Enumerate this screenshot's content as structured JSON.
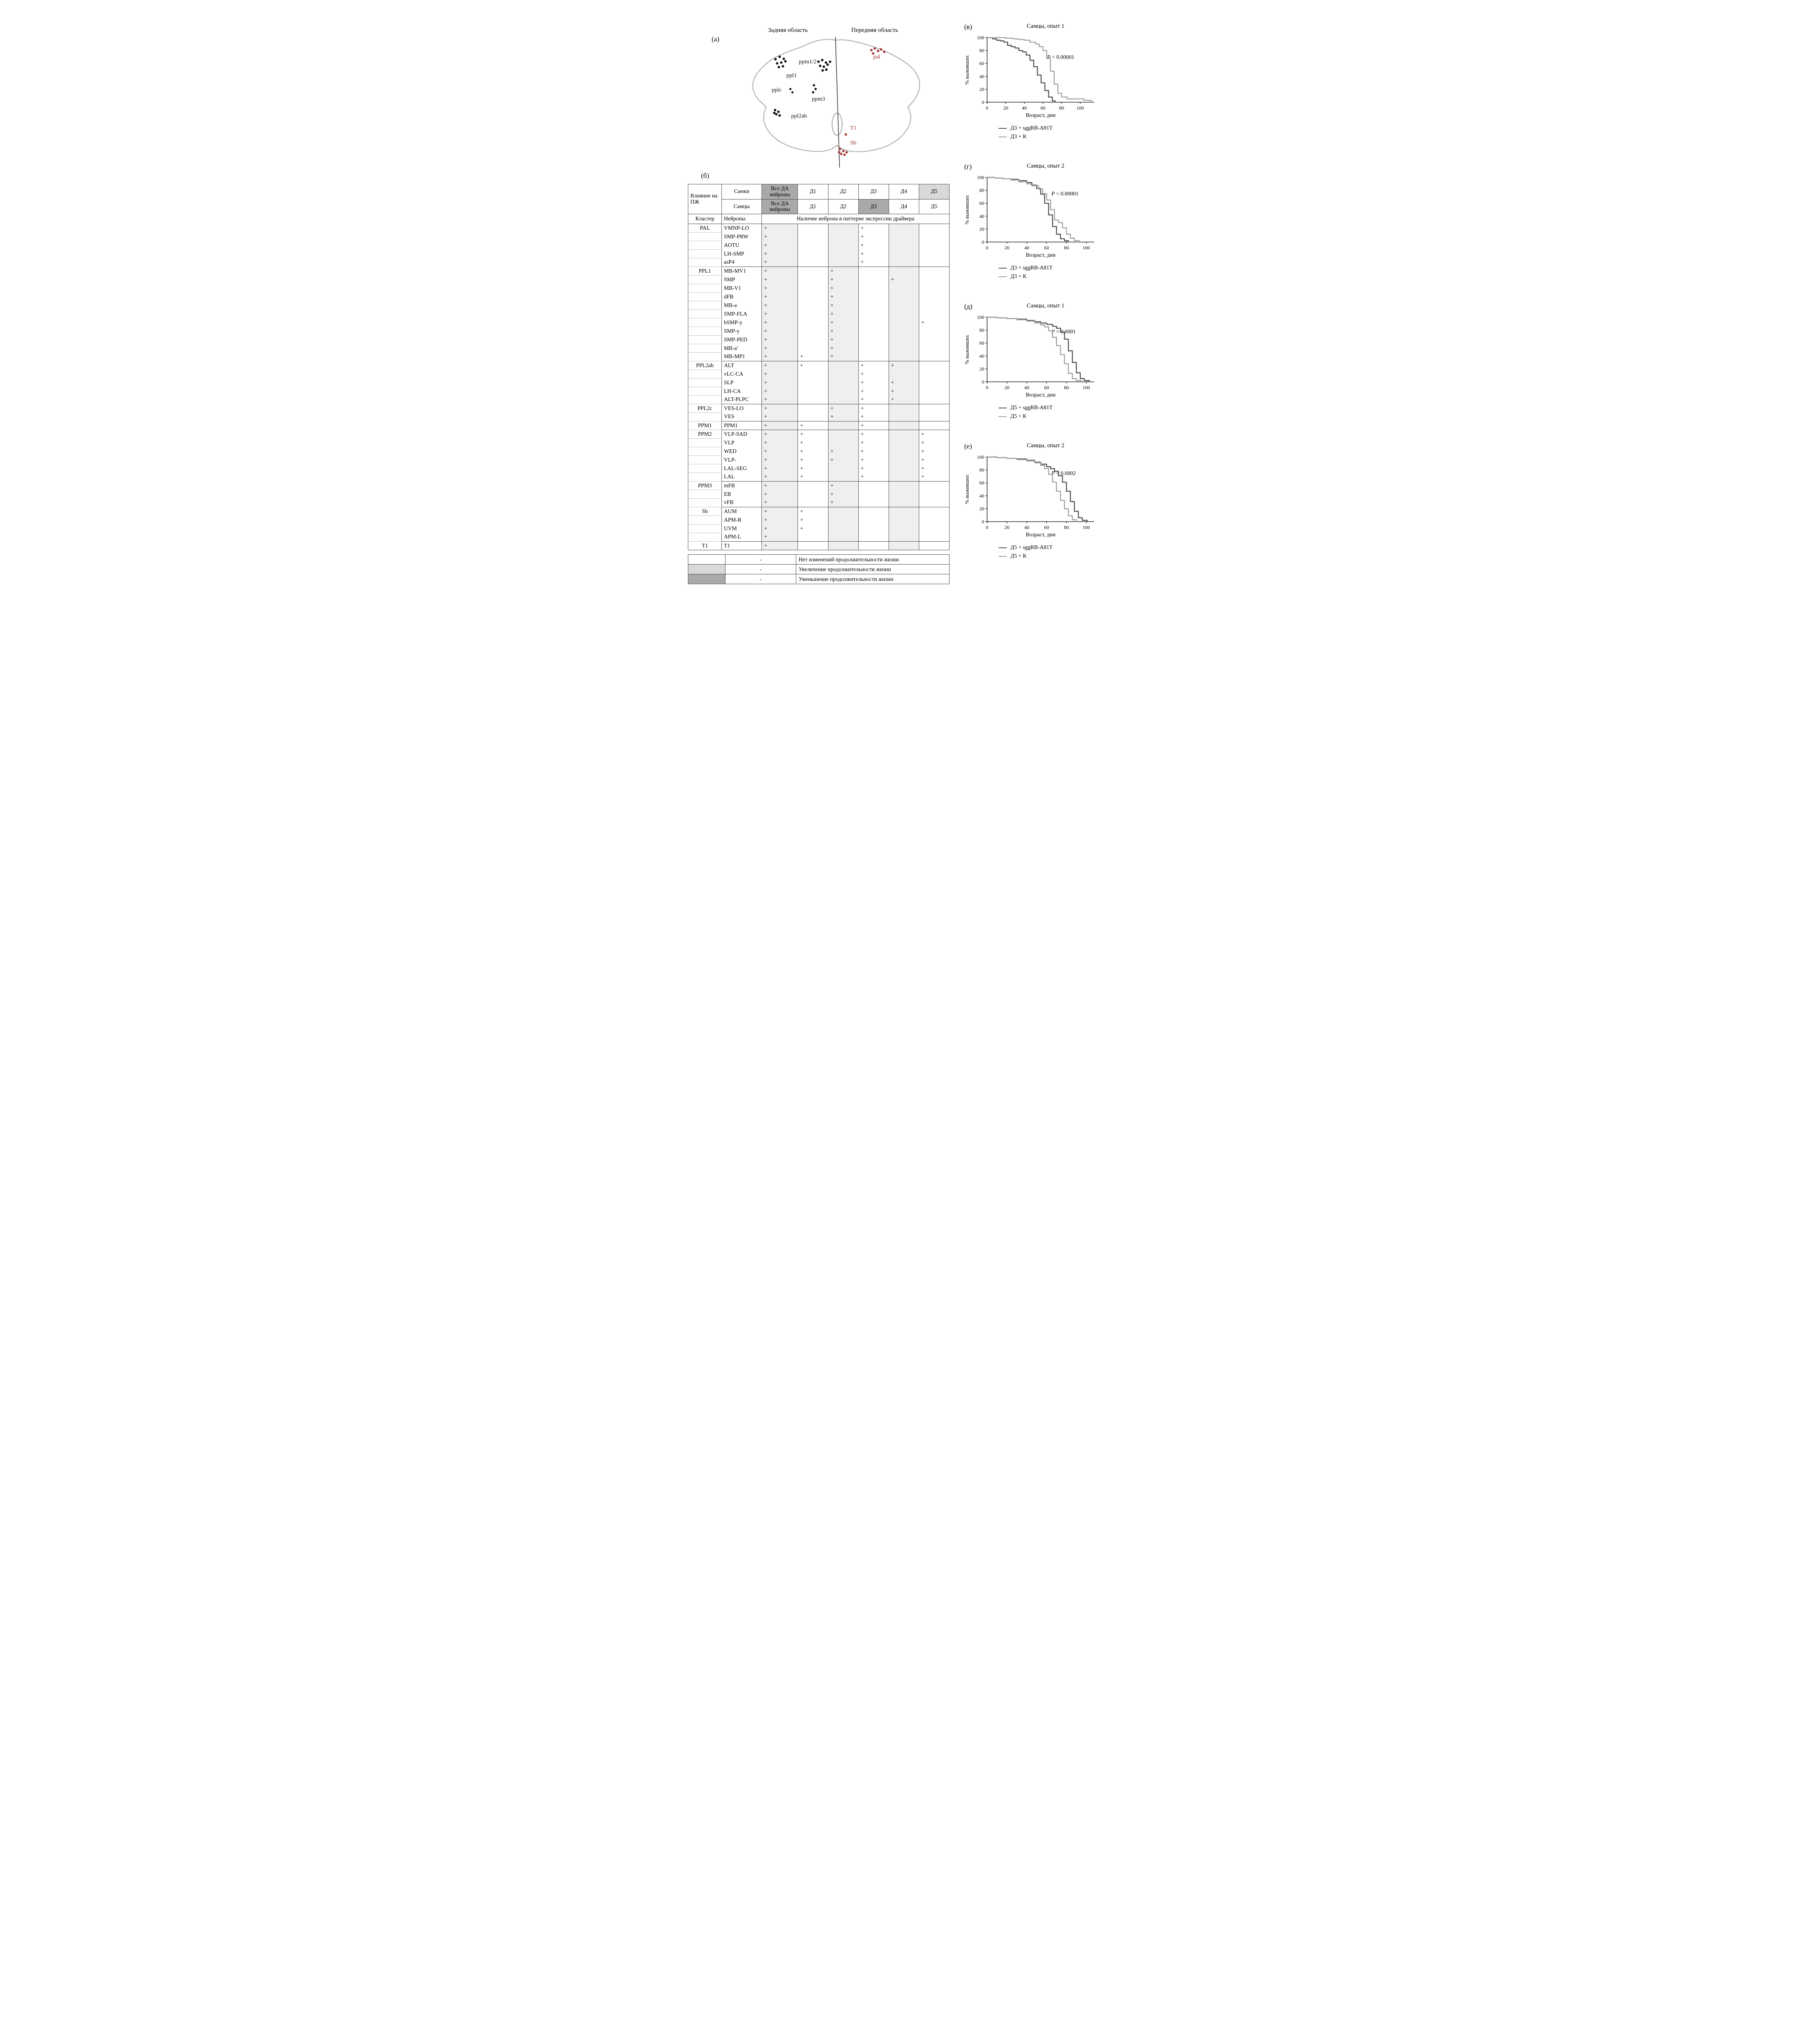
{
  "figure": {
    "panel_a": {
      "label": "(а)",
      "region_left": "Задняя область",
      "region_right": "Передняя область",
      "black_labels": [
        "ppm1/2",
        "ppl1",
        "pplc",
        "ppm3",
        "ppl2ab"
      ],
      "red_labels": [
        "pal",
        "T1",
        "Sb"
      ]
    },
    "panel_b": {
      "label": "(б)",
      "header": {
        "influence": "Влияние на ПЖ",
        "row_females": "Самки",
        "row_males": "Самцы",
        "all_da": "Все ДА нейроны",
        "drivers": [
          "Д1",
          "Д2",
          "Д3",
          "Д4",
          "Д5"
        ],
        "females_shading": [
          "dark",
          "",
          "",
          "",
          "",
          "light"
        ],
        "males_shading": [
          "dark",
          "",
          "",
          "dark",
          "",
          ""
        ],
        "cluster_col": "Кластер",
        "neuron_col": "Нейроны",
        "presence": "Наличие нейрона в паттерне экспрессии драйвера"
      },
      "stripe_columns": [
        0,
        2,
        4
      ],
      "groups": [
        {
          "cluster": "PAL",
          "rows": [
            {
              "neuron": "VMNP-LO",
              "marks": [
                "+",
                "",
                "",
                "+",
                "",
                ""
              ]
            },
            {
              "neuron": "SMP-PRW",
              "marks": [
                "+",
                "",
                "",
                "+",
                "",
                ""
              ]
            },
            {
              "neuron": "AOTU",
              "marks": [
                "+",
                "",
                "",
                "+",
                "",
                ""
              ]
            },
            {
              "neuron": "LH-SMP",
              "marks": [
                "+",
                "",
                "",
                "+",
                "",
                ""
              ]
            },
            {
              "neuron": "asP4",
              "marks": [
                "+",
                "",
                "",
                "+",
                "",
                ""
              ]
            }
          ]
        },
        {
          "cluster": "PPL1",
          "rows": [
            {
              "neuron": "MB-MV1",
              "marks": [
                "+",
                "",
                "+",
                "",
                "",
                ""
              ]
            },
            {
              "neuron": "SMP",
              "marks": [
                "+",
                "",
                "+",
                "",
                "+",
                ""
              ]
            },
            {
              "neuron": "MB-V1",
              "marks": [
                "+",
                "",
                "+",
                "",
                "",
                ""
              ]
            },
            {
              "neuron": "dFB",
              "marks": [
                "+",
                "",
                "+",
                "",
                "",
                ""
              ]
            },
            {
              "neuron": "MB-a",
              "marks": [
                "+",
                "",
                "+",
                "",
                "",
                ""
              ]
            },
            {
              "neuron": "SMP-FLA",
              "marks": [
                "+",
                "",
                "+",
                "",
                "",
                ""
              ]
            },
            {
              "neuron": "bSMP-y",
              "marks": [
                "+",
                "",
                "+",
                "",
                "",
                "+"
              ]
            },
            {
              "neuron": "SMP-y",
              "marks": [
                "+",
                "",
                "+",
                "",
                "",
                ""
              ]
            },
            {
              "neuron": "SMP-PED",
              "marks": [
                "+",
                "",
                "+",
                "",
                "",
                ""
              ]
            },
            {
              "neuron": "MB-a'",
              "marks": [
                "+",
                "",
                "+",
                "",
                "",
                ""
              ]
            },
            {
              "neuron": "MB-MP1",
              "marks": [
                "+",
                "+",
                "+",
                "",
                "",
                ""
              ]
            }
          ]
        },
        {
          "cluster": "PPL2ab",
          "rows": [
            {
              "neuron": "ALT",
              "marks": [
                "+",
                "+",
                "",
                "+",
                "+",
                ""
              ]
            },
            {
              "neuron": "vLC-CA",
              "marks": [
                "+",
                "",
                "",
                "+",
                "",
                ""
              ]
            },
            {
              "neuron": "SLP",
              "marks": [
                "+",
                "",
                "",
                "+",
                "+",
                ""
              ]
            },
            {
              "neuron": "LH-CA",
              "marks": [
                "+",
                "",
                "",
                "+",
                "+",
                ""
              ]
            },
            {
              "neuron": "ALT-PLPC",
              "marks": [
                "+",
                "",
                "",
                "+",
                "+",
                ""
              ]
            }
          ]
        },
        {
          "cluster": "PPL2c",
          "rows": [
            {
              "neuron": "VES-LO",
              "marks": [
                "+",
                "",
                "+",
                "+",
                "",
                ""
              ]
            },
            {
              "neuron": "VES",
              "marks": [
                "+",
                "",
                "+",
                "+",
                "",
                ""
              ]
            }
          ]
        },
        {
          "cluster": "PPM1",
          "rows": [
            {
              "neuron": "PPM1",
              "marks": [
                "+",
                "+",
                "",
                "+",
                "",
                ""
              ]
            }
          ]
        },
        {
          "cluster": "PPM2",
          "rows": [
            {
              "neuron": "VLP-SAD",
              "marks": [
                "+",
                "+",
                "",
                "+",
                "",
                "+"
              ]
            },
            {
              "neuron": "VLP",
              "marks": [
                "+",
                "+",
                "",
                "+",
                "",
                "+"
              ]
            },
            {
              "neuron": "WED",
              "marks": [
                "+",
                "+",
                "+",
                "+",
                "",
                "+"
              ]
            },
            {
              "neuron": "VLP-",
              "marks": [
                "+",
                "+",
                "+",
                "+",
                "",
                "+"
              ]
            },
            {
              "neuron": "LAL-SEG",
              "marks": [
                "+",
                "+",
                "",
                "+",
                "",
                "+"
              ]
            },
            {
              "neuron": "LAL",
              "marks": [
                "+",
                "+",
                "",
                "+",
                "",
                "+"
              ]
            }
          ]
        },
        {
          "cluster": "PPM3",
          "rows": [
            {
              "neuron": "mFB",
              "marks": [
                "+",
                "",
                "+",
                "",
                "",
                ""
              ]
            },
            {
              "neuron": "EB",
              "marks": [
                "+",
                "",
                "+",
                "",
                "",
                ""
              ]
            },
            {
              "neuron": "vFB",
              "marks": [
                "+",
                "",
                "+",
                "",
                "",
                ""
              ]
            }
          ]
        },
        {
          "cluster": "Sb",
          "rows": [
            {
              "neuron": "AUM",
              "marks": [
                "+",
                "+",
                "",
                "",
                "",
                ""
              ]
            },
            {
              "neuron": "APM-R",
              "marks": [
                "+",
                "+",
                "",
                "",
                "",
                ""
              ]
            },
            {
              "neuron": "UVM",
              "marks": [
                "+",
                "+",
                "",
                "",
                "",
                ""
              ]
            },
            {
              "neuron": "APM-L",
              "marks": [
                "+",
                "",
                "",
                "",
                "",
                ""
              ]
            }
          ]
        },
        {
          "cluster": "T1",
          "rows": [
            {
              "neuron": "T1",
              "marks": [
                "+",
                "",
                "",
                "",
                "",
                ""
              ]
            }
          ]
        }
      ],
      "legend": [
        {
          "swatch": "none",
          "dash": "-",
          "text": "Нет изменений продолжительности жизни"
        },
        {
          "swatch": "light",
          "dash": "-",
          "text": "Увеличение продолжительности жизни"
        },
        {
          "swatch": "dark",
          "dash": "-",
          "text": "Уменьшение продолжительности жизни"
        }
      ]
    },
    "colors": {
      "red_label": "#9b2c2c",
      "dot_black": "#111111",
      "dot_red": "#a83a3a",
      "line_dark": "#4f4f4f",
      "line_light": "#a0a0a0",
      "shade_dark": "#a9a9a9",
      "shade_light": "#d9d9d9",
      "stripe": "#efefef"
    }
  },
  "chart_data": [
    {
      "type": "line",
      "panel_label": "(в)",
      "title": "Самцы, опыт 1",
      "xlabel": "Возраст, дни",
      "ylabel": "% выживших",
      "xlim": [
        0,
        115
      ],
      "ylim": [
        0,
        100
      ],
      "xticks": [
        0,
        20,
        40,
        60,
        80,
        100
      ],
      "yticks": [
        0,
        20,
        40,
        60,
        80,
        100
      ],
      "annotation_italic": "P",
      "annotation_rest": " < 0.00001",
      "annotation_pos": [
        0.56,
        0.33
      ],
      "step": true,
      "legend_position": "below",
      "series": [
        {
          "name": "Д3 + sggRB-A81T",
          "color": "#4f4f4f",
          "x": [
            0,
            6,
            10,
            14,
            18,
            22,
            26,
            30,
            34,
            38,
            42,
            46,
            50,
            54,
            58,
            62,
            66,
            70,
            73
          ],
          "y": [
            100,
            98,
            96,
            95,
            93,
            88,
            86,
            84,
            80,
            78,
            73,
            65,
            55,
            42,
            30,
            18,
            8,
            2,
            0
          ]
        },
        {
          "name": "Д3 + К",
          "color": "#a0a0a0",
          "x": [
            0,
            10,
            20,
            28,
            34,
            40,
            46,
            52,
            56,
            60,
            64,
            68,
            72,
            76,
            80,
            86,
            96,
            104,
            112
          ],
          "y": [
            100,
            100,
            99,
            98,
            97,
            96,
            93,
            90,
            86,
            80,
            68,
            48,
            28,
            14,
            8,
            5,
            5,
            3,
            0
          ]
        }
      ]
    },
    {
      "type": "line",
      "panel_label": "(г)",
      "title": "Самцы, опыт 2",
      "xlabel": "Возраст, дни",
      "ylabel": "% выживших",
      "xlim": [
        0,
        108
      ],
      "ylim": [
        0,
        100
      ],
      "xticks": [
        0,
        20,
        40,
        60,
        80,
        100
      ],
      "yticks": [
        0,
        20,
        40,
        60,
        80,
        100
      ],
      "annotation_italic": "P",
      "annotation_rest": " < 0.00001",
      "annotation_pos": [
        0.6,
        0.28
      ],
      "step": true,
      "legend_position": "below",
      "series": [
        {
          "name": "Д3 + sggRB-A81T",
          "color": "#4f4f4f",
          "x": [
            0,
            8,
            16,
            24,
            32,
            40,
            45,
            50,
            54,
            58,
            62,
            66,
            70,
            74,
            78,
            82
          ],
          "y": [
            100,
            99,
            98,
            97,
            95,
            92,
            88,
            83,
            74,
            60,
            42,
            24,
            12,
            5,
            2,
            0
          ]
        },
        {
          "name": "Д3 + К",
          "color": "#a0a0a0",
          "x": [
            0,
            8,
            16,
            24,
            32,
            40,
            46,
            52,
            56,
            60,
            64,
            68,
            72,
            76,
            80,
            84,
            88,
            93
          ],
          "y": [
            100,
            99,
            98,
            96,
            93,
            90,
            87,
            82,
            75,
            65,
            50,
            34,
            30,
            22,
            12,
            6,
            2,
            0
          ]
        }
      ]
    },
    {
      "type": "line",
      "panel_label": "(д)",
      "title": "Самцы, опыт 1",
      "xlabel": "Возраст, дни",
      "ylabel": "% выживших",
      "xlim": [
        0,
        108
      ],
      "ylim": [
        0,
        100
      ],
      "xticks": [
        0,
        20,
        40,
        60,
        80,
        100
      ],
      "yticks": [
        0,
        20,
        40,
        60,
        80,
        100
      ],
      "annotation_italic": "P",
      "annotation_rest": " = 0.0001",
      "annotation_pos": [
        0.6,
        0.25
      ],
      "step": true,
      "legend_position": "below",
      "series": [
        {
          "name": "Д5 + sggRB-A81T",
          "color": "#4f4f4f",
          "x": [
            0,
            10,
            20,
            30,
            40,
            48,
            54,
            60,
            66,
            70,
            74,
            78,
            82,
            86,
            90,
            94,
            98,
            103
          ],
          "y": [
            100,
            99,
            98,
            97,
            95,
            93,
            91,
            89,
            86,
            83,
            77,
            66,
            48,
            30,
            14,
            5,
            2,
            0
          ]
        },
        {
          "name": "Д5 + К",
          "color": "#a0a0a0",
          "x": [
            0,
            10,
            20,
            30,
            40,
            48,
            54,
            58,
            62,
            66,
            70,
            74,
            78,
            82,
            86,
            90,
            95
          ],
          "y": [
            100,
            99,
            98,
            96,
            94,
            91,
            88,
            85,
            79,
            69,
            56,
            42,
            28,
            13,
            5,
            2,
            0
          ]
        }
      ]
    },
    {
      "type": "line",
      "panel_label": "(е)",
      "title": "Самцы, опыт 2",
      "xlabel": "Возраст, дни",
      "ylabel": "% выживших",
      "xlim": [
        0,
        108
      ],
      "ylim": [
        0,
        100
      ],
      "xticks": [
        0,
        20,
        40,
        60,
        80,
        100
      ],
      "yticks": [
        0,
        20,
        40,
        60,
        80,
        100
      ],
      "annotation_italic": "P",
      "annotation_rest": " = 0.0002",
      "annotation_pos": [
        0.6,
        0.28
      ],
      "step": true,
      "legend_position": "below",
      "series": [
        {
          "name": "Д5 + sggRB-A81T",
          "color": "#4f4f4f",
          "x": [
            0,
            10,
            20,
            30,
            40,
            48,
            54,
            60,
            64,
            68,
            72,
            76,
            80,
            84,
            88,
            92,
            96,
            101
          ],
          "y": [
            100,
            99,
            98,
            97,
            95,
            92,
            89,
            85,
            82,
            78,
            71,
            61,
            47,
            31,
            16,
            6,
            2,
            0
          ]
        },
        {
          "name": "Д5 + К",
          "color": "#a0a0a0",
          "x": [
            0,
            10,
            20,
            30,
            40,
            48,
            54,
            58,
            62,
            66,
            70,
            74,
            78,
            82,
            86,
            90
          ],
          "y": [
            100,
            99,
            98,
            96,
            94,
            91,
            87,
            82,
            73,
            61,
            47,
            33,
            20,
            9,
            3,
            0
          ]
        }
      ]
    }
  ]
}
